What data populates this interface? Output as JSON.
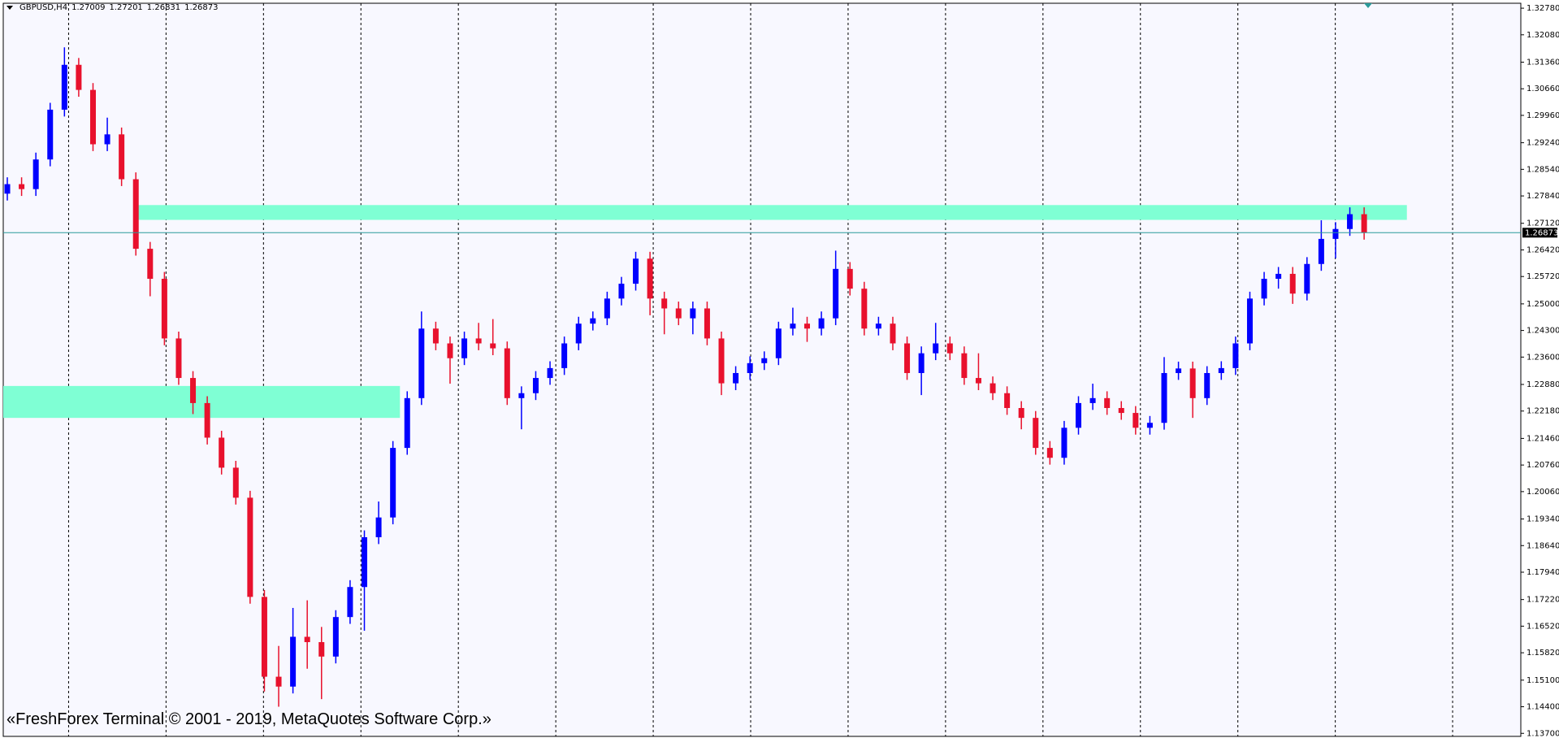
{
  "chart_data": {
    "type": "candlestick",
    "symbol": "GBPUSD,H4",
    "header_ohlc": [
      1.27009,
      1.27201,
      1.26831,
      1.26873
    ],
    "bull_color": "#0000ff",
    "bear_color": "#e8112d",
    "open": [
      1.279,
      1.2815,
      1.2802,
      1.288,
      1.3011,
      1.3129,
      1.3063,
      1.292,
      1.2946,
      1.2828,
      1.2645,
      1.2566,
      1.2409,
      1.2305,
      1.2239,
      1.2148,
      1.2069,
      1.199,
      1.1729,
      1.1519,
      1.1493,
      1.1624,
      1.161,
      1.1572,
      1.1676,
      1.1755,
      1.1886,
      1.1938,
      1.2121,
      1.2252,
      1.2435,
      1.2396,
      1.2357,
      1.2409,
      1.2396,
      1.2383,
      1.2252,
      1.2265,
      1.2305,
      1.2331,
      1.2396,
      1.2448,
      1.2462,
      1.2514,
      1.2553,
      1.2619,
      1.2514,
      1.2488,
      1.2462,
      1.2488,
      1.2409,
      1.2291,
      1.2318,
      1.2344,
      1.2357,
      1.2435,
      1.2448,
      1.2435,
      1.2462,
      1.2592,
      1.254,
      1.2435,
      1.2448,
      1.2396,
      1.2318,
      1.237,
      1.2396,
      1.237,
      1.2305,
      1.2291,
      1.2265,
      1.2226,
      1.22,
      1.2121,
      1.2095,
      1.2174,
      1.2239,
      1.2252,
      1.2226,
      1.2213,
      1.2174,
      1.2187,
      1.2318,
      1.233,
      1.2252,
      1.2318,
      1.2331,
      1.2396,
      1.2514,
      1.2566,
      1.2579,
      1.2527,
      1.2605,
      1.2671,
      1.2697,
      1.2736
    ],
    "high": [
      1.2833,
      1.2833,
      1.2898,
      1.3029,
      1.3175,
      1.3147,
      1.3081,
      1.299,
      1.2964,
      1.2846,
      1.2663,
      1.2584,
      1.2427,
      1.2323,
      1.2257,
      1.2166,
      1.2087,
      1.2008,
      1.1747,
      1.16,
      1.17,
      1.172,
      1.165,
      1.1694,
      1.1773,
      1.1904,
      1.198,
      1.2139,
      1.227,
      1.248,
      1.2453,
      1.2414,
      1.2427,
      1.245,
      1.246,
      1.2401,
      1.2283,
      1.2323,
      1.2349,
      1.2414,
      1.2466,
      1.248,
      1.2532,
      1.2571,
      1.2637,
      1.2637,
      1.2532,
      1.2506,
      1.2506,
      1.2506,
      1.2427,
      1.2336,
      1.2362,
      1.2375,
      1.2453,
      1.249,
      1.2466,
      1.248,
      1.264,
      1.261,
      1.2558,
      1.2466,
      1.2466,
      1.2414,
      1.2388,
      1.245,
      1.2414,
      1.2388,
      1.237,
      1.2309,
      1.2283,
      1.2244,
      1.2218,
      1.2139,
      1.2192,
      1.2257,
      1.229,
      1.227,
      1.2244,
      1.2231,
      1.2205,
      1.236,
      1.2348,
      1.2348,
      1.2336,
      1.2349,
      1.2414,
      1.2532,
      1.2584,
      1.2597,
      1.2597,
      1.2623,
      1.272,
      1.2715,
      1.2754,
      1.2754
    ],
    "low": [
      1.2772,
      1.2784,
      1.2784,
      1.2862,
      1.2993,
      1.3045,
      1.2902,
      1.2902,
      1.281,
      1.2627,
      1.252,
      1.2391,
      1.2287,
      1.221,
      1.213,
      1.2051,
      1.1972,
      1.1711,
      1.148,
      1.144,
      1.1475,
      1.154,
      1.146,
      1.1554,
      1.1658,
      1.164,
      1.1868,
      1.192,
      1.2103,
      1.2234,
      1.2378,
      1.229,
      1.2339,
      1.2378,
      1.2365,
      1.2234,
      1.217,
      1.2247,
      1.2287,
      1.2313,
      1.2378,
      1.243,
      1.2444,
      1.2496,
      1.2535,
      1.247,
      1.242,
      1.2444,
      1.242,
      1.2391,
      1.226,
      1.2273,
      1.23,
      1.2326,
      1.2339,
      1.2417,
      1.24,
      1.2417,
      1.2444,
      1.2522,
      1.2417,
      1.2417,
      1.2378,
      1.23,
      1.226,
      1.2352,
      1.2352,
      1.2287,
      1.2273,
      1.2247,
      1.2208,
      1.217,
      1.2103,
      1.2077,
      1.2077,
      1.2156,
      1.2221,
      1.2208,
      1.2195,
      1.2156,
      1.2156,
      1.2169,
      1.23,
      1.22,
      1.2234,
      1.23,
      1.2313,
      1.2378,
      1.2496,
      1.254,
      1.25,
      1.2509,
      1.2587,
      1.262,
      1.2679,
      1.2669
    ],
    "close": [
      1.2815,
      1.2802,
      1.288,
      1.3011,
      1.3129,
      1.3063,
      1.292,
      1.2946,
      1.2828,
      1.2645,
      1.2566,
      1.2409,
      1.2305,
      1.2239,
      1.2148,
      1.2069,
      1.199,
      1.1729,
      1.1519,
      1.1493,
      1.1624,
      1.161,
      1.1572,
      1.1676,
      1.1755,
      1.1886,
      1.1938,
      1.2121,
      1.2252,
      1.2435,
      1.2396,
      1.2357,
      1.2409,
      1.2396,
      1.2383,
      1.2252,
      1.2265,
      1.2305,
      1.2331,
      1.2396,
      1.2448,
      1.2462,
      1.2514,
      1.2553,
      1.2619,
      1.2514,
      1.2488,
      1.2462,
      1.2488,
      1.2409,
      1.2291,
      1.2318,
      1.2344,
      1.2357,
      1.2435,
      1.2448,
      1.2435,
      1.2462,
      1.2592,
      1.254,
      1.2435,
      1.2448,
      1.2396,
      1.2318,
      1.237,
      1.2396,
      1.237,
      1.2305,
      1.2291,
      1.2265,
      1.2226,
      1.22,
      1.2121,
      1.2095,
      1.2174,
      1.2239,
      1.2252,
      1.2226,
      1.2213,
      1.2174,
      1.2187,
      1.2318,
      1.233,
      1.2252,
      1.2318,
      1.2331,
      1.2396,
      1.2514,
      1.2566,
      1.2579,
      1.2527,
      1.2605,
      1.2671,
      1.2697,
      1.2736,
      1.2687
    ],
    "ylim": [
      1.1362,
      1.3291
    ],
    "yticks": [
      {
        "value": 1.3278,
        "label": "1.32780"
      },
      {
        "value": 1.3208,
        "label": "1.32080"
      },
      {
        "value": 1.3136,
        "label": "1.31360"
      },
      {
        "value": 1.3066,
        "label": "1.30660"
      },
      {
        "value": 1.2996,
        "label": "1.29960"
      },
      {
        "value": 1.2924,
        "label": "1.29240"
      },
      {
        "value": 1.2854,
        "label": "1.28540"
      },
      {
        "value": 1.2784,
        "label": "1.27840"
      },
      {
        "value": 1.2712,
        "label": "1.27120"
      },
      {
        "value": 1.2642,
        "label": "1.26420"
      },
      {
        "value": 1.2572,
        "label": "1.25720"
      },
      {
        "value": 1.25,
        "label": "1.25000"
      },
      {
        "value": 1.243,
        "label": "1.24300"
      },
      {
        "value": 1.236,
        "label": "1.23600"
      },
      {
        "value": 1.2288,
        "label": "1.22880"
      },
      {
        "value": 1.2218,
        "label": "1.22180"
      },
      {
        "value": 1.2146,
        "label": "1.21460"
      },
      {
        "value": 1.2076,
        "label": "1.20760"
      },
      {
        "value": 1.2006,
        "label": "1.20060"
      },
      {
        "value": 1.1934,
        "label": "1.19340"
      },
      {
        "value": 1.1864,
        "label": "1.18640"
      },
      {
        "value": 1.1794,
        "label": "1.17940"
      },
      {
        "value": 1.1722,
        "label": "1.17220"
      },
      {
        "value": 1.1652,
        "label": "1.16520"
      },
      {
        "value": 1.1582,
        "label": "1.15820"
      },
      {
        "value": 1.151,
        "label": "1.15100"
      },
      {
        "value": 1.144,
        "label": "1.14400"
      },
      {
        "value": 1.137,
        "label": "1.13700"
      }
    ],
    "current_price": 1.26873,
    "current_price_color": "#2a9a9a",
    "zones": [
      {
        "low": 1.2721,
        "high": 1.276
      },
      {
        "low": 1.22,
        "high": 1.2284
      }
    ],
    "zone_color": "#7fffd4"
  },
  "watermark": "«FreshForex Terminal © 2001 - 2019, MetaQuotes Software Corp.»"
}
